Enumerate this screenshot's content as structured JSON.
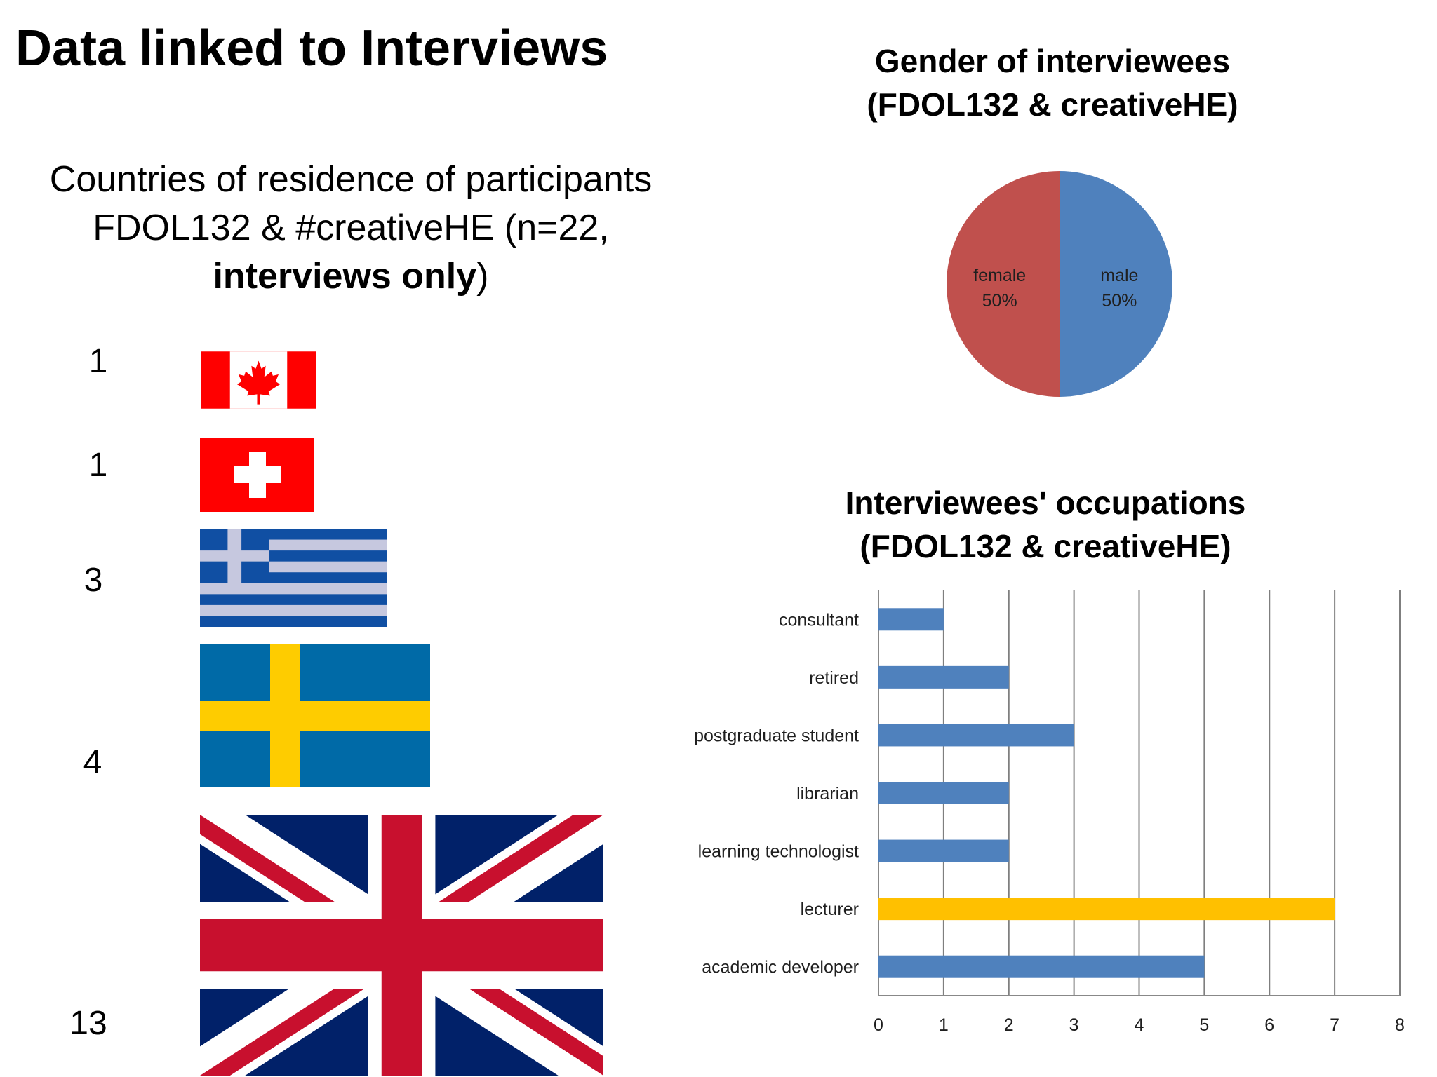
{
  "slide": {
    "title": "Data linked to Interviews"
  },
  "countries": {
    "title_line1": "Countries of residence of  participants",
    "title_line2": "FDOL132 & #creativeHE (n=22,",
    "title_line3_bold": "interviews only",
    "title_line3_end": ")",
    "items": [
      {
        "country": "Canada",
        "count": "1",
        "flag_icon": "canada-flag-icon"
      },
      {
        "country": "Switzerland",
        "count": "1",
        "flag_icon": "switzerland-flag-icon"
      },
      {
        "country": "Greece",
        "count": "3",
        "flag_icon": "greece-flag-icon"
      },
      {
        "country": "Sweden",
        "count": "4",
        "flag_icon": "sweden-flag-icon"
      },
      {
        "country": "United Kingdom",
        "count": "13",
        "flag_icon": "uk-flag-icon"
      }
    ]
  },
  "gender": {
    "title_line1": "Gender of interviewees",
    "title_line2": "(FDOL132 & creativeHE)"
  },
  "occupations": {
    "title_line1": "Interviewees' occupations",
    "title_line2": "(FDOL132 & creativeHE)"
  },
  "colors": {
    "blue": "#4F81BD",
    "red": "#C0504D",
    "highlight": "#FFC000",
    "grid": "#7f7f7f"
  },
  "chart_data": [
    {
      "type": "pie",
      "title": "Gender of interviewees (FDOL132 & creativeHE)",
      "slices": [
        {
          "label": "male",
          "value": 50,
          "percent_label": "50%",
          "color": "#4F81BD"
        },
        {
          "label": "female",
          "value": 50,
          "percent_label": "50%",
          "color": "#C0504D"
        }
      ]
    },
    {
      "type": "bar",
      "orientation": "horizontal",
      "title": "Interviewees' occupations (FDOL132 & creativeHE)",
      "categories": [
        "consultant",
        "retired",
        "postgraduate student",
        "librarian",
        "learning technologist",
        "lecturer",
        "academic developer"
      ],
      "values": [
        1,
        2,
        3,
        2,
        2,
        7,
        5
      ],
      "colors": [
        "#4F81BD",
        "#4F81BD",
        "#4F81BD",
        "#4F81BD",
        "#4F81BD",
        "#FFC000",
        "#4F81BD"
      ],
      "xlim": [
        0,
        8
      ],
      "xticks": [
        "0",
        "1",
        "2",
        "3",
        "4",
        "5",
        "6",
        "7",
        "8"
      ],
      "grid": true
    }
  ]
}
